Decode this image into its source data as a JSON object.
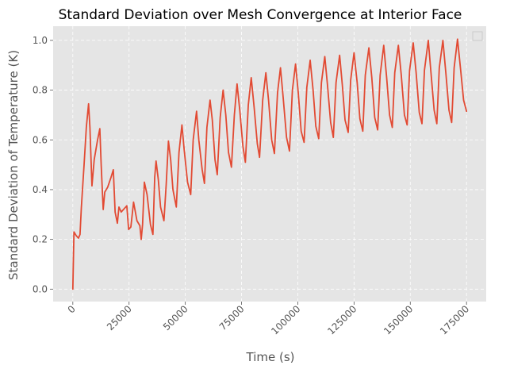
{
  "chart_data": {
    "type": "line",
    "title": "Standard Deviation over Mesh Convergence at Interior Face",
    "xlabel": "Time (s)",
    "ylabel": "Standard Deviation of Temperature (K)",
    "xlim": [
      -8750,
      183750
    ],
    "ylim": [
      -0.05,
      1.057
    ],
    "xticks": [
      0,
      25000,
      50000,
      75000,
      100000,
      125000,
      150000,
      175000
    ],
    "xtick_labels": [
      "0",
      "25000",
      "50000",
      "75000",
      "100000",
      "125000",
      "150000",
      "175000"
    ],
    "yticks": [
      0.0,
      0.2,
      0.4,
      0.6,
      0.8,
      1.0
    ],
    "ytick_labels": [
      "0.0",
      "0.2",
      "0.4",
      "0.6",
      "0.8",
      "1.0"
    ],
    "grid": true,
    "legend": "upper-right (empty)",
    "colors": {
      "background": "#E5E5E5",
      "grid": "#FFFFFF",
      "line": "#E24A33"
    },
    "series": [
      {
        "values": [
          [
            0,
            0.0
          ],
          [
            500,
            0.23
          ],
          [
            1500,
            0.215
          ],
          [
            2500,
            0.205
          ],
          [
            3200,
            0.22
          ],
          [
            3800,
            0.33
          ],
          [
            5000,
            0.5
          ],
          [
            6000,
            0.65
          ],
          [
            7000,
            0.745
          ],
          [
            7600,
            0.65
          ],
          [
            8500,
            0.415
          ],
          [
            9500,
            0.52
          ],
          [
            11000,
            0.6
          ],
          [
            12000,
            0.645
          ],
          [
            12600,
            0.5
          ],
          [
            13500,
            0.32
          ],
          [
            14200,
            0.39
          ],
          [
            15500,
            0.41
          ],
          [
            17000,
            0.45
          ],
          [
            18000,
            0.48
          ],
          [
            18800,
            0.31
          ],
          [
            19800,
            0.265
          ],
          [
            20500,
            0.33
          ],
          [
            21500,
            0.31
          ],
          [
            23000,
            0.325
          ],
          [
            24000,
            0.335
          ],
          [
            24800,
            0.24
          ],
          [
            25800,
            0.25
          ],
          [
            27000,
            0.35
          ],
          [
            28500,
            0.275
          ],
          [
            29800,
            0.255
          ],
          [
            30400,
            0.2
          ],
          [
            31000,
            0.26
          ],
          [
            31800,
            0.43
          ],
          [
            33000,
            0.38
          ],
          [
            34500,
            0.26
          ],
          [
            35600,
            0.22
          ],
          [
            36400,
            0.45
          ],
          [
            37000,
            0.515
          ],
          [
            38000,
            0.44
          ],
          [
            39000,
            0.33
          ],
          [
            40500,
            0.275
          ],
          [
            41500,
            0.42
          ],
          [
            42500,
            0.595
          ],
          [
            43500,
            0.52
          ],
          [
            44500,
            0.4
          ],
          [
            46000,
            0.33
          ],
          [
            47200,
            0.55
          ],
          [
            48500,
            0.66
          ],
          [
            49500,
            0.56
          ],
          [
            51000,
            0.43
          ],
          [
            52400,
            0.38
          ],
          [
            53500,
            0.6
          ],
          [
            55000,
            0.715
          ],
          [
            56000,
            0.6
          ],
          [
            57500,
            0.48
          ],
          [
            58500,
            0.425
          ],
          [
            59600,
            0.65
          ],
          [
            61000,
            0.76
          ],
          [
            62000,
            0.68
          ],
          [
            63200,
            0.52
          ],
          [
            64200,
            0.46
          ],
          [
            65500,
            0.69
          ],
          [
            66800,
            0.8
          ],
          [
            68000,
            0.7
          ],
          [
            69200,
            0.55
          ],
          [
            70500,
            0.49
          ],
          [
            71800,
            0.7
          ],
          [
            73000,
            0.825
          ],
          [
            74200,
            0.72
          ],
          [
            75600,
            0.575
          ],
          [
            76700,
            0.51
          ],
          [
            78000,
            0.74
          ],
          [
            79300,
            0.85
          ],
          [
            80600,
            0.73
          ],
          [
            82000,
            0.585
          ],
          [
            83000,
            0.53
          ],
          [
            84400,
            0.76
          ],
          [
            85800,
            0.87
          ],
          [
            87000,
            0.76
          ],
          [
            88400,
            0.6
          ],
          [
            89600,
            0.545
          ],
          [
            91000,
            0.79
          ],
          [
            92300,
            0.89
          ],
          [
            93500,
            0.77
          ],
          [
            95000,
            0.61
          ],
          [
            96300,
            0.555
          ],
          [
            97600,
            0.8
          ],
          [
            99000,
            0.905
          ],
          [
            100200,
            0.79
          ],
          [
            101500,
            0.635
          ],
          [
            102800,
            0.59
          ],
          [
            104000,
            0.81
          ],
          [
            105500,
            0.92
          ],
          [
            106800,
            0.8
          ],
          [
            108000,
            0.655
          ],
          [
            109300,
            0.605
          ],
          [
            110500,
            0.83
          ],
          [
            112000,
            0.935
          ],
          [
            113200,
            0.82
          ],
          [
            114600,
            0.67
          ],
          [
            115800,
            0.61
          ],
          [
            117000,
            0.83
          ],
          [
            118600,
            0.94
          ],
          [
            119800,
            0.82
          ],
          [
            121000,
            0.68
          ],
          [
            122400,
            0.63
          ],
          [
            123500,
            0.84
          ],
          [
            125000,
            0.95
          ],
          [
            126400,
            0.83
          ],
          [
            127600,
            0.685
          ],
          [
            128900,
            0.635
          ],
          [
            130000,
            0.86
          ],
          [
            131600,
            0.97
          ],
          [
            132900,
            0.85
          ],
          [
            134200,
            0.69
          ],
          [
            135500,
            0.64
          ],
          [
            136600,
            0.86
          ],
          [
            138200,
            0.98
          ],
          [
            139500,
            0.85
          ],
          [
            140800,
            0.7
          ],
          [
            142000,
            0.65
          ],
          [
            143100,
            0.87
          ],
          [
            144700,
            0.98
          ],
          [
            146000,
            0.86
          ],
          [
            147400,
            0.7
          ],
          [
            148600,
            0.66
          ],
          [
            149700,
            0.88
          ],
          [
            151300,
            0.99
          ],
          [
            152600,
            0.87
          ],
          [
            154000,
            0.71
          ],
          [
            155200,
            0.665
          ],
          [
            156300,
            0.88
          ],
          [
            158000,
            1.0
          ],
          [
            159200,
            0.87
          ],
          [
            160600,
            0.72
          ],
          [
            161800,
            0.665
          ],
          [
            162900,
            0.89
          ],
          [
            164500,
            1.0
          ],
          [
            165800,
            0.87
          ],
          [
            167200,
            0.72
          ],
          [
            168400,
            0.67
          ],
          [
            169500,
            0.89
          ],
          [
            171000,
            1.005
          ],
          [
            172400,
            0.88
          ],
          [
            173700,
            0.76
          ],
          [
            175000,
            0.715
          ]
        ]
      }
    ]
  }
}
